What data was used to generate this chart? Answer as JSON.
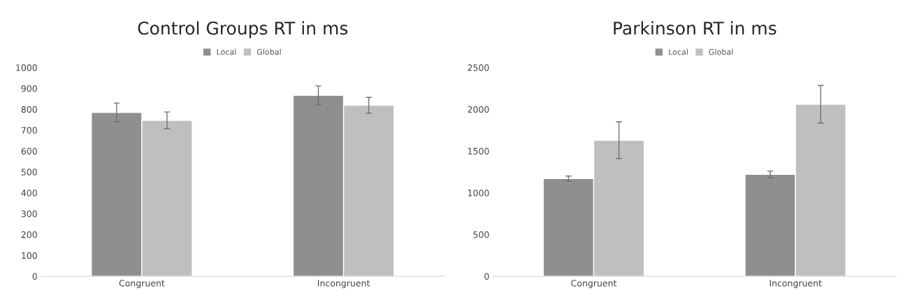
{
  "chart_data": [
    {
      "type": "bar",
      "title": "Control Groups RT in ms",
      "categories": [
        "Congruent",
        "Incongruent"
      ],
      "series": [
        {
          "name": "Local",
          "color": "#8f8f8f",
          "values": [
            785,
            867
          ],
          "errors": [
            45,
            45
          ]
        },
        {
          "name": "Global",
          "color": "#bfbfbf",
          "values": [
            747,
            819
          ],
          "errors": [
            40,
            38
          ]
        }
      ],
      "ylim": [
        0,
        1000
      ],
      "yticks": [
        0,
        100,
        200,
        300,
        400,
        500,
        600,
        700,
        800,
        900,
        1000
      ],
      "grid": false,
      "legend": "top"
    },
    {
      "type": "bar",
      "title": "Parkinson RT in ms",
      "categories": [
        "Congruent",
        "Incongruent"
      ],
      "series": [
        {
          "name": "Local",
          "color": "#8f8f8f",
          "values": [
            1170,
            1220
          ],
          "errors": [
            30,
            40
          ]
        },
        {
          "name": "Global",
          "color": "#bfbfbf",
          "values": [
            1630,
            2060
          ],
          "errors": [
            220,
            225
          ]
        }
      ],
      "ylim": [
        0,
        2500
      ],
      "yticks": [
        0,
        500,
        1000,
        1500,
        2000,
        2500
      ],
      "grid": false,
      "legend": "top"
    }
  ]
}
